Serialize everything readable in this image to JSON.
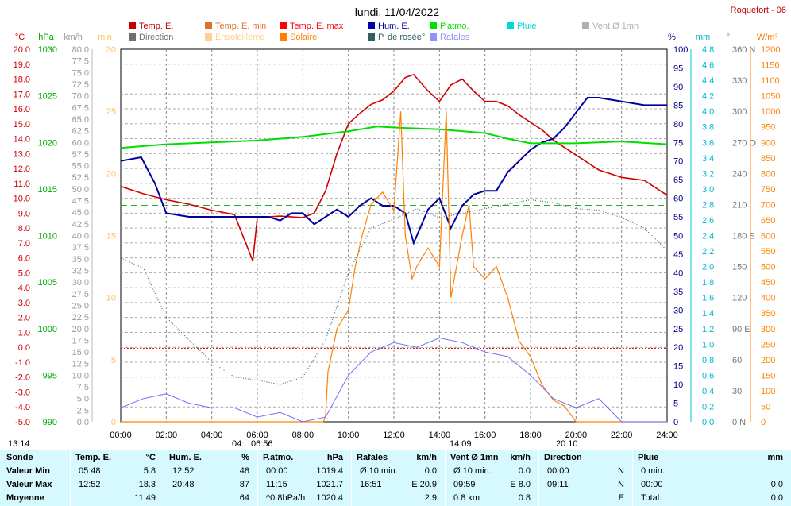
{
  "title": "lundi, 11/04/2022",
  "station": "Roquefort - 06",
  "colors": {
    "temp": "#d00000",
    "pressure": "#00dd00",
    "humidity": "#0000a0",
    "solar": "#ff8000",
    "wind": "#7070ff",
    "dewpoint": "#206060",
    "direction": "#808080",
    "grid": "#888888"
  },
  "legend": [
    {
      "label": "Temp. E.",
      "color": "#c00000"
    },
    {
      "label": "Temp. E. min",
      "color": "#e07030"
    },
    {
      "label": "Temp. E. max",
      "color": "#ff0000"
    },
    {
      "label": "Hum. E.",
      "color": "#0000a0"
    },
    {
      "label": "P.atmo.",
      "color": "#00dd00"
    },
    {
      "label": "Pluie",
      "color": "#00d8d8"
    },
    {
      "label": "Vent Ø 1mn",
      "color": "#b0b0b0"
    },
    {
      "label": "Direction",
      "color": "#707070"
    },
    {
      "label": "Ensoleilleme",
      "color": "#ffd090"
    },
    {
      "label": "Solaire",
      "color": "#ff8000"
    },
    {
      "label": "P. de rosée°",
      "color": "#306060"
    },
    {
      "label": "Rafales",
      "color": "#9090ff"
    }
  ],
  "axis_units": {
    "temp": "°C",
    "pressure": "hPa",
    "wind": "km/h",
    "minutes": "min",
    "humidity": "%",
    "rain": "mm",
    "direction": "°",
    "solar": "W/m²"
  },
  "axes": {
    "temp": [
      "20.0",
      "19.0",
      "18.0",
      "17.0",
      "16.0",
      "15.0",
      "14.0",
      "13.0",
      "12.0",
      "11.0",
      "10.0",
      "9.0",
      "8.0",
      "7.0",
      "6.0",
      "5.0",
      "4.0",
      "3.0",
      "2.0",
      "1.0",
      "0.0",
      "-1.0",
      "-2.0",
      "-3.0",
      "-4.0",
      "-5.0"
    ],
    "pressure": [
      "1030",
      "1025",
      "1020",
      "1015",
      "1010",
      "1005",
      "1000",
      "995",
      "990"
    ],
    "wind": [
      "80.0",
      "77.5",
      "75.0",
      "72.5",
      "70.0",
      "67.5",
      "65.0",
      "62.5",
      "60.0",
      "57.5",
      "55.0",
      "52.5",
      "50.0",
      "47.5",
      "45.0",
      "42.5",
      "40.0",
      "37.5",
      "35.0",
      "32.5",
      "30.0",
      "27.5",
      "25.0",
      "22.5",
      "20.0",
      "17.5",
      "15.0",
      "12.5",
      "10.0",
      "7.5",
      "5.0",
      "2.5",
      "0.0"
    ],
    "minutes": [
      "30",
      "25",
      "20",
      "15",
      "10",
      "5",
      "0"
    ],
    "humidity": [
      "100",
      "95",
      "90",
      "85",
      "80",
      "75",
      "70",
      "65",
      "60",
      "55",
      "50",
      "45",
      "40",
      "35",
      "30",
      "25",
      "20",
      "15",
      "10",
      "5",
      "0"
    ],
    "rain": [
      "4.8",
      "4.6",
      "4.4",
      "4.2",
      "4.0",
      "3.8",
      "3.6",
      "3.4",
      "3.2",
      "3.0",
      "2.8",
      "2.6",
      "2.4",
      "2.2",
      "2.0",
      "1.8",
      "1.6",
      "1.4",
      "1.2",
      "1.0",
      "0.8",
      "0.6",
      "0.4",
      "0.2",
      "0.0"
    ],
    "direction": [
      "360 N",
      "330",
      "300",
      "270 O",
      "240",
      "210",
      "180 S",
      "150",
      "120",
      "90 E",
      "60",
      "30",
      "0 N"
    ],
    "solar": [
      "1200",
      "1150",
      "1100",
      "1050",
      "1000",
      "950",
      "900",
      "850",
      "800",
      "750",
      "700",
      "650",
      "600",
      "550",
      "500",
      "450",
      "400",
      "350",
      "300",
      "250",
      "200",
      "150",
      "100",
      "50",
      "0"
    ]
  },
  "x_ticks": [
    "00:00",
    "02:00",
    "04:00",
    "06:00",
    "08:00",
    "10:00",
    "12:00",
    "14:00",
    "16:00",
    "18:00",
    "20:00",
    "22:00",
    "24:00"
  ],
  "sun_marks": {
    "start": "13:14",
    "sunrise": "04:",
    "sunrise2": "06:56",
    "noon": "14:09",
    "sunset": "20:10"
  },
  "chart_data": {
    "type": "line",
    "x_unit": "hour",
    "xlim": [
      0,
      24
    ],
    "series": [
      {
        "name": "Temp. E.",
        "axis": "°C",
        "ylim": [
          -5,
          20
        ],
        "points": [
          [
            0,
            10.8
          ],
          [
            1,
            10.3
          ],
          [
            2,
            9.9
          ],
          [
            3,
            9.6
          ],
          [
            4,
            9.2
          ],
          [
            5,
            8.9
          ],
          [
            5.8,
            5.8
          ],
          [
            6,
            8.7
          ],
          [
            7,
            8.8
          ],
          [
            8,
            8.7
          ],
          [
            8.5,
            9.0
          ],
          [
            9,
            10.5
          ],
          [
            9.5,
            13.0
          ],
          [
            10,
            15.0
          ],
          [
            10.5,
            15.7
          ],
          [
            11,
            16.3
          ],
          [
            11.5,
            16.6
          ],
          [
            12,
            17.2
          ],
          [
            12.5,
            18.1
          ],
          [
            12.87,
            18.3
          ],
          [
            13.5,
            17.2
          ],
          [
            14,
            16.5
          ],
          [
            14.5,
            17.6
          ],
          [
            15,
            18.0
          ],
          [
            15.5,
            17.2
          ],
          [
            16,
            16.5
          ],
          [
            16.5,
            16.5
          ],
          [
            17,
            16.2
          ],
          [
            17.5,
            15.6
          ],
          [
            18,
            15.1
          ],
          [
            18.5,
            14.6
          ],
          [
            19,
            13.9
          ],
          [
            19.5,
            13.4
          ],
          [
            20,
            12.9
          ],
          [
            20.5,
            12.4
          ],
          [
            21,
            11.9
          ],
          [
            22,
            11.4
          ],
          [
            23,
            11.2
          ],
          [
            24,
            10.2
          ]
        ]
      },
      {
        "name": "Hum. E.",
        "axis": "%",
        "ylim": [
          0,
          100
        ],
        "points": [
          [
            0,
            70
          ],
          [
            0.9,
            71
          ],
          [
            1.5,
            64
          ],
          [
            2,
            56
          ],
          [
            3,
            55
          ],
          [
            4,
            55
          ],
          [
            5,
            55
          ],
          [
            6,
            55
          ],
          [
            6.5,
            55
          ],
          [
            7,
            54
          ],
          [
            7.5,
            56
          ],
          [
            8,
            56
          ],
          [
            8.5,
            53
          ],
          [
            9,
            55
          ],
          [
            9.5,
            57
          ],
          [
            10,
            55
          ],
          [
            10.5,
            58
          ],
          [
            11,
            60
          ],
          [
            11.5,
            58
          ],
          [
            12,
            58
          ],
          [
            12.5,
            56
          ],
          [
            12.87,
            48
          ],
          [
            13.5,
            57
          ],
          [
            14,
            60
          ],
          [
            14.5,
            52
          ],
          [
            15,
            58
          ],
          [
            15.5,
            61
          ],
          [
            16,
            62
          ],
          [
            16.5,
            62
          ],
          [
            17,
            67
          ],
          [
            17.5,
            70
          ],
          [
            18,
            73
          ],
          [
            18.5,
            75
          ],
          [
            19,
            76
          ],
          [
            19.5,
            79
          ],
          [
            20,
            83
          ],
          [
            20.5,
            87
          ],
          [
            21,
            87
          ],
          [
            22,
            86
          ],
          [
            23,
            85
          ],
          [
            24,
            85
          ]
        ]
      },
      {
        "name": "P.atmo.",
        "axis": "hPa",
        "ylim": [
          990,
          1030
        ],
        "points": [
          [
            0,
            1019.4
          ],
          [
            1,
            1019.6
          ],
          [
            2,
            1019.8
          ],
          [
            4,
            1020.0
          ],
          [
            6,
            1020.2
          ],
          [
            8,
            1020.6
          ],
          [
            10,
            1021.2
          ],
          [
            11.25,
            1021.7
          ],
          [
            12,
            1021.6
          ],
          [
            14,
            1021.4
          ],
          [
            16,
            1021.0
          ],
          [
            17,
            1020.4
          ],
          [
            18,
            1019.9
          ],
          [
            20,
            1019.9
          ],
          [
            22,
            1020.1
          ],
          [
            24,
            1019.8
          ]
        ]
      },
      {
        "name": "Solaire",
        "axis": "W/m²",
        "ylim": [
          0,
          1200
        ],
        "points": [
          [
            0,
            0
          ],
          [
            8.9,
            0
          ],
          [
            9.0,
            20
          ],
          [
            9.1,
            160
          ],
          [
            9.5,
            300
          ],
          [
            10,
            360
          ],
          [
            10.3,
            500
          ],
          [
            10.6,
            600
          ],
          [
            11,
            700
          ],
          [
            11.5,
            740
          ],
          [
            12,
            680
          ],
          [
            12.3,
            1000
          ],
          [
            12.5,
            600
          ],
          [
            12.8,
            460
          ],
          [
            13,
            500
          ],
          [
            13.5,
            560
          ],
          [
            14,
            500
          ],
          [
            14.3,
            1000
          ],
          [
            14.5,
            400
          ],
          [
            14.7,
            480
          ],
          [
            15,
            600
          ],
          [
            15.3,
            700
          ],
          [
            15.5,
            500
          ],
          [
            16,
            460
          ],
          [
            16.5,
            500
          ],
          [
            17,
            400
          ],
          [
            17.5,
            260
          ],
          [
            18,
            210
          ],
          [
            18.5,
            120
          ],
          [
            19,
            70
          ],
          [
            19.5,
            50
          ],
          [
            20,
            0
          ],
          [
            24,
            0
          ]
        ]
      },
      {
        "name": "P. de rosée°",
        "axis": "°C",
        "ylim": [
          -5,
          20
        ],
        "points": [
          [
            0,
            6.0
          ],
          [
            1,
            5.3
          ],
          [
            2,
            2.0
          ],
          [
            3,
            0.5
          ],
          [
            4,
            -1.0
          ],
          [
            5,
            -2.0
          ],
          [
            6,
            -2.2
          ],
          [
            7,
            -2.5
          ],
          [
            8,
            -2.0
          ],
          [
            9,
            0.5
          ],
          [
            10,
            5.0
          ],
          [
            11,
            8.0
          ],
          [
            12,
            8.6
          ],
          [
            13,
            9.3
          ],
          [
            14,
            8.7
          ],
          [
            15,
            9.0
          ],
          [
            16,
            9.3
          ],
          [
            17,
            9.6
          ],
          [
            18,
            9.9
          ],
          [
            19,
            9.7
          ],
          [
            20,
            9.3
          ],
          [
            21,
            9.2
          ],
          [
            22,
            8.7
          ],
          [
            23,
            8.0
          ],
          [
            24,
            6.5
          ]
        ]
      },
      {
        "name": "Rafales",
        "axis": "km/h",
        "ylim": [
          0,
          80
        ],
        "points": [
          [
            0,
            3
          ],
          [
            1,
            5
          ],
          [
            2,
            6
          ],
          [
            3,
            4
          ],
          [
            4,
            3
          ],
          [
            5,
            3
          ],
          [
            6,
            1
          ],
          [
            7,
            2
          ],
          [
            8,
            0
          ],
          [
            9,
            1
          ],
          [
            10,
            10
          ],
          [
            11,
            15
          ],
          [
            12,
            17
          ],
          [
            13,
            16
          ],
          [
            14,
            18
          ],
          [
            15,
            17
          ],
          [
            16,
            15
          ],
          [
            17,
            14
          ],
          [
            18,
            10
          ],
          [
            19,
            5
          ],
          [
            20,
            3
          ],
          [
            21,
            5
          ],
          [
            22,
            0
          ],
          [
            24,
            0
          ]
        ]
      }
    ]
  },
  "table": {
    "row_labels": [
      "Sonde",
      "Valeur Min",
      "Valeur Max",
      "Moyenne"
    ],
    "columns": [
      {
        "header": "Temp. E.",
        "unit": "°C",
        "rows": [
          [
            "05:48",
            "5.8"
          ],
          [
            "12:52",
            "18.3"
          ],
          [
            "",
            "11.49"
          ]
        ]
      },
      {
        "header": "Hum. E.",
        "unit": "%",
        "rows": [
          [
            "12:52",
            "48"
          ],
          [
            "20:48",
            "87"
          ],
          [
            "",
            "64"
          ]
        ]
      },
      {
        "header": "P.atmo.",
        "unit": "hPa",
        "rows": [
          [
            "00:00",
            "1019.4"
          ],
          [
            "11:15",
            "1021.7"
          ],
          [
            "^0.8hPa/h",
            "1020.4"
          ]
        ]
      },
      {
        "header": "Rafales",
        "unit": "km/h",
        "rows": [
          [
            "Ø 10 min.",
            "0.0"
          ],
          [
            "16:51",
            "E 20.9"
          ],
          [
            "",
            "2.9"
          ]
        ]
      },
      {
        "header": "Vent Ø 1mn",
        "unit": "km/h",
        "rows": [
          [
            "Ø 10 min.",
            "0.0"
          ],
          [
            "09:59",
            "E 8.0"
          ],
          [
            "0.8 km",
            "0.8"
          ]
        ]
      },
      {
        "header": "Direction",
        "unit": "",
        "rows": [
          [
            "00:00",
            "N"
          ],
          [
            "09:11",
            "N"
          ],
          [
            "",
            "E"
          ]
        ]
      },
      {
        "header": "Pluie",
        "unit": "mm",
        "rows": [
          [
            "0 min.",
            ""
          ],
          [
            "00:00",
            "0.0"
          ],
          [
            "Total:",
            "0.0"
          ]
        ]
      }
    ]
  }
}
